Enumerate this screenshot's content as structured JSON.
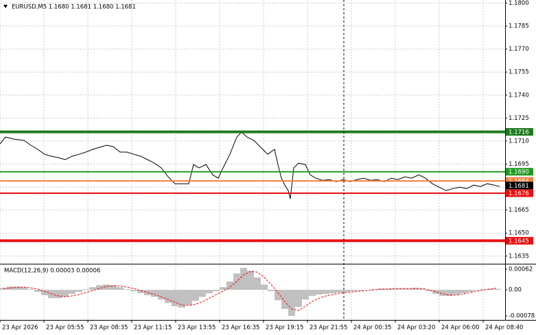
{
  "chart_data": [
    {
      "type": "line",
      "title": "EURUSD,M5 1.1680 1.1681 1.1680 1.1681",
      "color": "#000000",
      "grid": true,
      "x": [
        0,
        4,
        10,
        17.5,
        22.5,
        27.5,
        32.5,
        37.5,
        42.5,
        47.5,
        52.5,
        57.5,
        62.5,
        67.5,
        72.5,
        77.5,
        82.5,
        87.5,
        92.5,
        97.5,
        102.5,
        107.5,
        112.5,
        117.5,
        122.5,
        127.5,
        132.5,
        137.5,
        141,
        145,
        150,
        155,
        159,
        162.5,
        167.5,
        172.5,
        176,
        180,
        185,
        190,
        195,
        200,
        202.5,
        205,
        207.5,
        210,
        211.5,
        214,
        217.5,
        222.5,
        226,
        230,
        235,
        240,
        245,
        250,
        255,
        260,
        265,
        270,
        275,
        280,
        285,
        290,
        295,
        300,
        305,
        310,
        315,
        320,
        325,
        330,
        335,
        340,
        345,
        350,
        355,
        360,
        364
      ],
      "values": [
        1.17082,
        1.17126,
        1.17113,
        1.17104,
        1.17073,
        1.17046,
        1.17014,
        1.17001,
        1.16992,
        1.16979,
        1.17001,
        1.17014,
        1.17028,
        1.17046,
        1.17059,
        1.17073,
        1.17064,
        1.17028,
        1.17028,
        1.17014,
        1.17001,
        1.16979,
        1.16956,
        1.16925,
        1.16867,
        1.16822,
        1.16822,
        1.16822,
        1.16947,
        1.16925,
        1.16947,
        1.1688,
        1.16858,
        1.16925,
        1.17014,
        1.17126,
        1.17158,
        1.17126,
        1.17104,
        1.17059,
        1.17014,
        1.17046,
        1.16947,
        1.16858,
        1.16813,
        1.16777,
        1.16723,
        1.16925,
        1.16956,
        1.16947,
        1.1688,
        1.16858,
        1.16844,
        1.16849,
        1.16835,
        1.16849,
        1.16835,
        1.16849,
        1.16858,
        1.16844,
        1.16849,
        1.16835,
        1.16858,
        1.16849,
        1.16867,
        1.16858,
        1.1688,
        1.16858,
        1.16822,
        1.16799,
        1.16777,
        1.1679,
        1.16799,
        1.1679,
        1.16813,
        1.16804,
        1.16822,
        1.16813,
        1.16804
      ],
      "xlim": [
        0,
        368
      ],
      "xticks": [
        {
          "value": 0,
          "label": "23 Apr 2026"
        },
        {
          "value": 32,
          "label": "23 Apr 05:55"
        },
        {
          "value": 64,
          "label": "23 Apr 08:35"
        },
        {
          "value": 96,
          "label": "23 Apr 11:15"
        },
        {
          "value": 128,
          "label": "23 Apr 13:55"
        },
        {
          "value": 160,
          "label": "23 Apr 16:35"
        },
        {
          "value": 192,
          "label": "23 Apr 19:15"
        },
        {
          "value": 224,
          "label": "23 Apr 21:55"
        },
        {
          "value": 256,
          "label": "24 Apr 00:35"
        },
        {
          "value": 288,
          "label": "24 Apr 03:20"
        },
        {
          "value": 320,
          "label": "24 Apr 06:00"
        },
        {
          "value": 352,
          "label": "24 Apr 08:40"
        }
      ],
      "ylim": [
        1.163,
        1.1802
      ],
      "yticks": [
        {
          "value": 1.18,
          "label": "1.1800"
        },
        1.1785,
        {
          "value": 1.177,
          "label": "1.1770"
        },
        1.1755,
        {
          "value": 1.174,
          "label": "1.1740"
        },
        1.1725,
        {
          "value": 1.171,
          "label": "1.1710"
        },
        1.1695,
        {
          "value": 1.168,
          "label": "1.1680"
        },
        1.1665,
        {
          "value": 1.165,
          "label": "1.1650"
        },
        1.1635
      ],
      "levels": [
        {
          "value": 1.1716,
          "label": "1.1716",
          "color": "#1e7b1e",
          "thick": true
        },
        {
          "value": 1.169,
          "label": "1.1690",
          "color": "#1e9b1e",
          "thick": false
        },
        {
          "value": 1.1684,
          "label": "1.1684",
          "color": "#f08040",
          "thick": false
        },
        {
          "value": 1.1676,
          "label": "1.1676",
          "color": "#e81010",
          "thick": false
        },
        {
          "value": 1.1645,
          "label": "1.1645",
          "color": "#e81010",
          "thick": true
        },
        {
          "value": 1.1681,
          "label": "1.1681",
          "color": "#000000",
          "thick": false
        }
      ]
    },
    {
      "type": "macd",
      "title": "MACD(12,26,9) 0.00003 0.00006",
      "x": [
        2.5,
        7.5,
        12.5,
        17.5,
        22.5,
        27.5,
        32.5,
        37.5,
        42.5,
        47.5,
        52.5,
        57.5,
        62.5,
        67.5,
        72.5,
        77.5,
        82.5,
        87.5,
        92.5,
        97.5,
        102.5,
        107.5,
        112.5,
        117.5,
        122.5,
        127.5,
        132.5,
        137.5,
        142.5,
        147.5,
        152.5,
        157.5,
        162.5,
        167.5,
        172.5,
        177.5,
        182.5,
        187.5,
        192.5,
        197.5,
        202.5,
        207.5,
        212.5,
        217.5,
        222.5,
        227.5,
        232.5,
        237.5,
        242.5,
        247.5,
        252.5,
        257.5,
        262.5,
        267.5,
        272.5,
        277.5,
        282.5,
        287.5,
        292.5,
        297.5,
        302.5,
        307.5,
        312.5,
        317.5,
        322.5,
        327.5,
        332.5,
        337.5,
        342.5,
        347.5,
        352.5,
        357.5,
        362.5
      ],
      "xlim": [
        0,
        368
      ],
      "ylim": [
        -0.0009,
        0.00074
      ],
      "yticks": [
        0.00062,
        {
          "value": 0,
          "label": "0.00"
        },
        -0.00078
      ],
      "series": [
        {
          "type": "bar",
          "color": "#c0c0c0",
          "values": [
            6e-05,
            0.0001,
            0.0001,
            8e-05,
            2e-05,
            -6e-05,
            -0.00016,
            -0.00025,
            -0.00025,
            -0.00021,
            -0.00012,
            -6e-05,
            2e-05,
            8e-05,
            0.00014,
            0.00016,
            0.00014,
            8e-05,
            2e-05,
            -4e-05,
            -0.0001,
            -0.00016,
            -0.00021,
            -0.00029,
            -0.00039,
            -0.00049,
            -0.00053,
            -0.00045,
            -0.00033,
            -0.00021,
            -0.0001,
            -4e-05,
            8e-05,
            0.00025,
            0.00049,
            0.00066,
            0.00057,
            0.00037,
            0.00016,
            -4e-05,
            -0.00031,
            -0.00057,
            -0.00078,
            -0.00051,
            -0.00029,
            -0.00018,
            -0.00014,
            -0.00012,
            -0.0001,
            -8e-05,
            -6e-05,
            -4e-05,
            -2e-05,
            0,
            2e-05,
            4e-05,
            4e-05,
            4e-05,
            4e-05,
            4e-05,
            6e-05,
            4e-05,
            -4e-05,
            -0.00012,
            -0.00018,
            -0.00018,
            -0.00014,
            -0.0001,
            -6e-05,
            -2e-05,
            2e-05,
            4e-05,
            3e-05
          ]
        },
        {
          "type": "line",
          "color": "#ff0000",
          "dashed": true,
          "values": [
            4e-05,
            6e-05,
            8e-05,
            8e-05,
            6e-05,
            2e-05,
            -4e-05,
            -0.00012,
            -0.00018,
            -0.00021,
            -0.00018,
            -0.00014,
            -8e-05,
            -2e-05,
            4e-05,
            0.0001,
            0.00012,
            0.00012,
            8e-05,
            4e-05,
            -2e-05,
            -8e-05,
            -0.00014,
            -0.00021,
            -0.00029,
            -0.00037,
            -0.00045,
            -0.00047,
            -0.00043,
            -0.00035,
            -0.00025,
            -0.00014,
            -4e-05,
            8e-05,
            0.00025,
            0.00045,
            0.00055,
            0.00053,
            0.00037,
            0.00016,
            -8e-05,
            -0.00035,
            -0.00057,
            -0.00062,
            -0.00049,
            -0.00035,
            -0.00025,
            -0.00018,
            -0.00014,
            -0.0001,
            -8e-05,
            -6e-05,
            -4e-05,
            -2e-05,
            0,
            2e-05,
            2e-05,
            4e-05,
            4e-05,
            4e-05,
            4e-05,
            4e-05,
            0,
            -6e-05,
            -0.00012,
            -0.00016,
            -0.00016,
            -0.00012,
            -8e-05,
            -4e-05,
            0,
            2e-05,
            6e-05
          ]
        }
      ]
    }
  ]
}
